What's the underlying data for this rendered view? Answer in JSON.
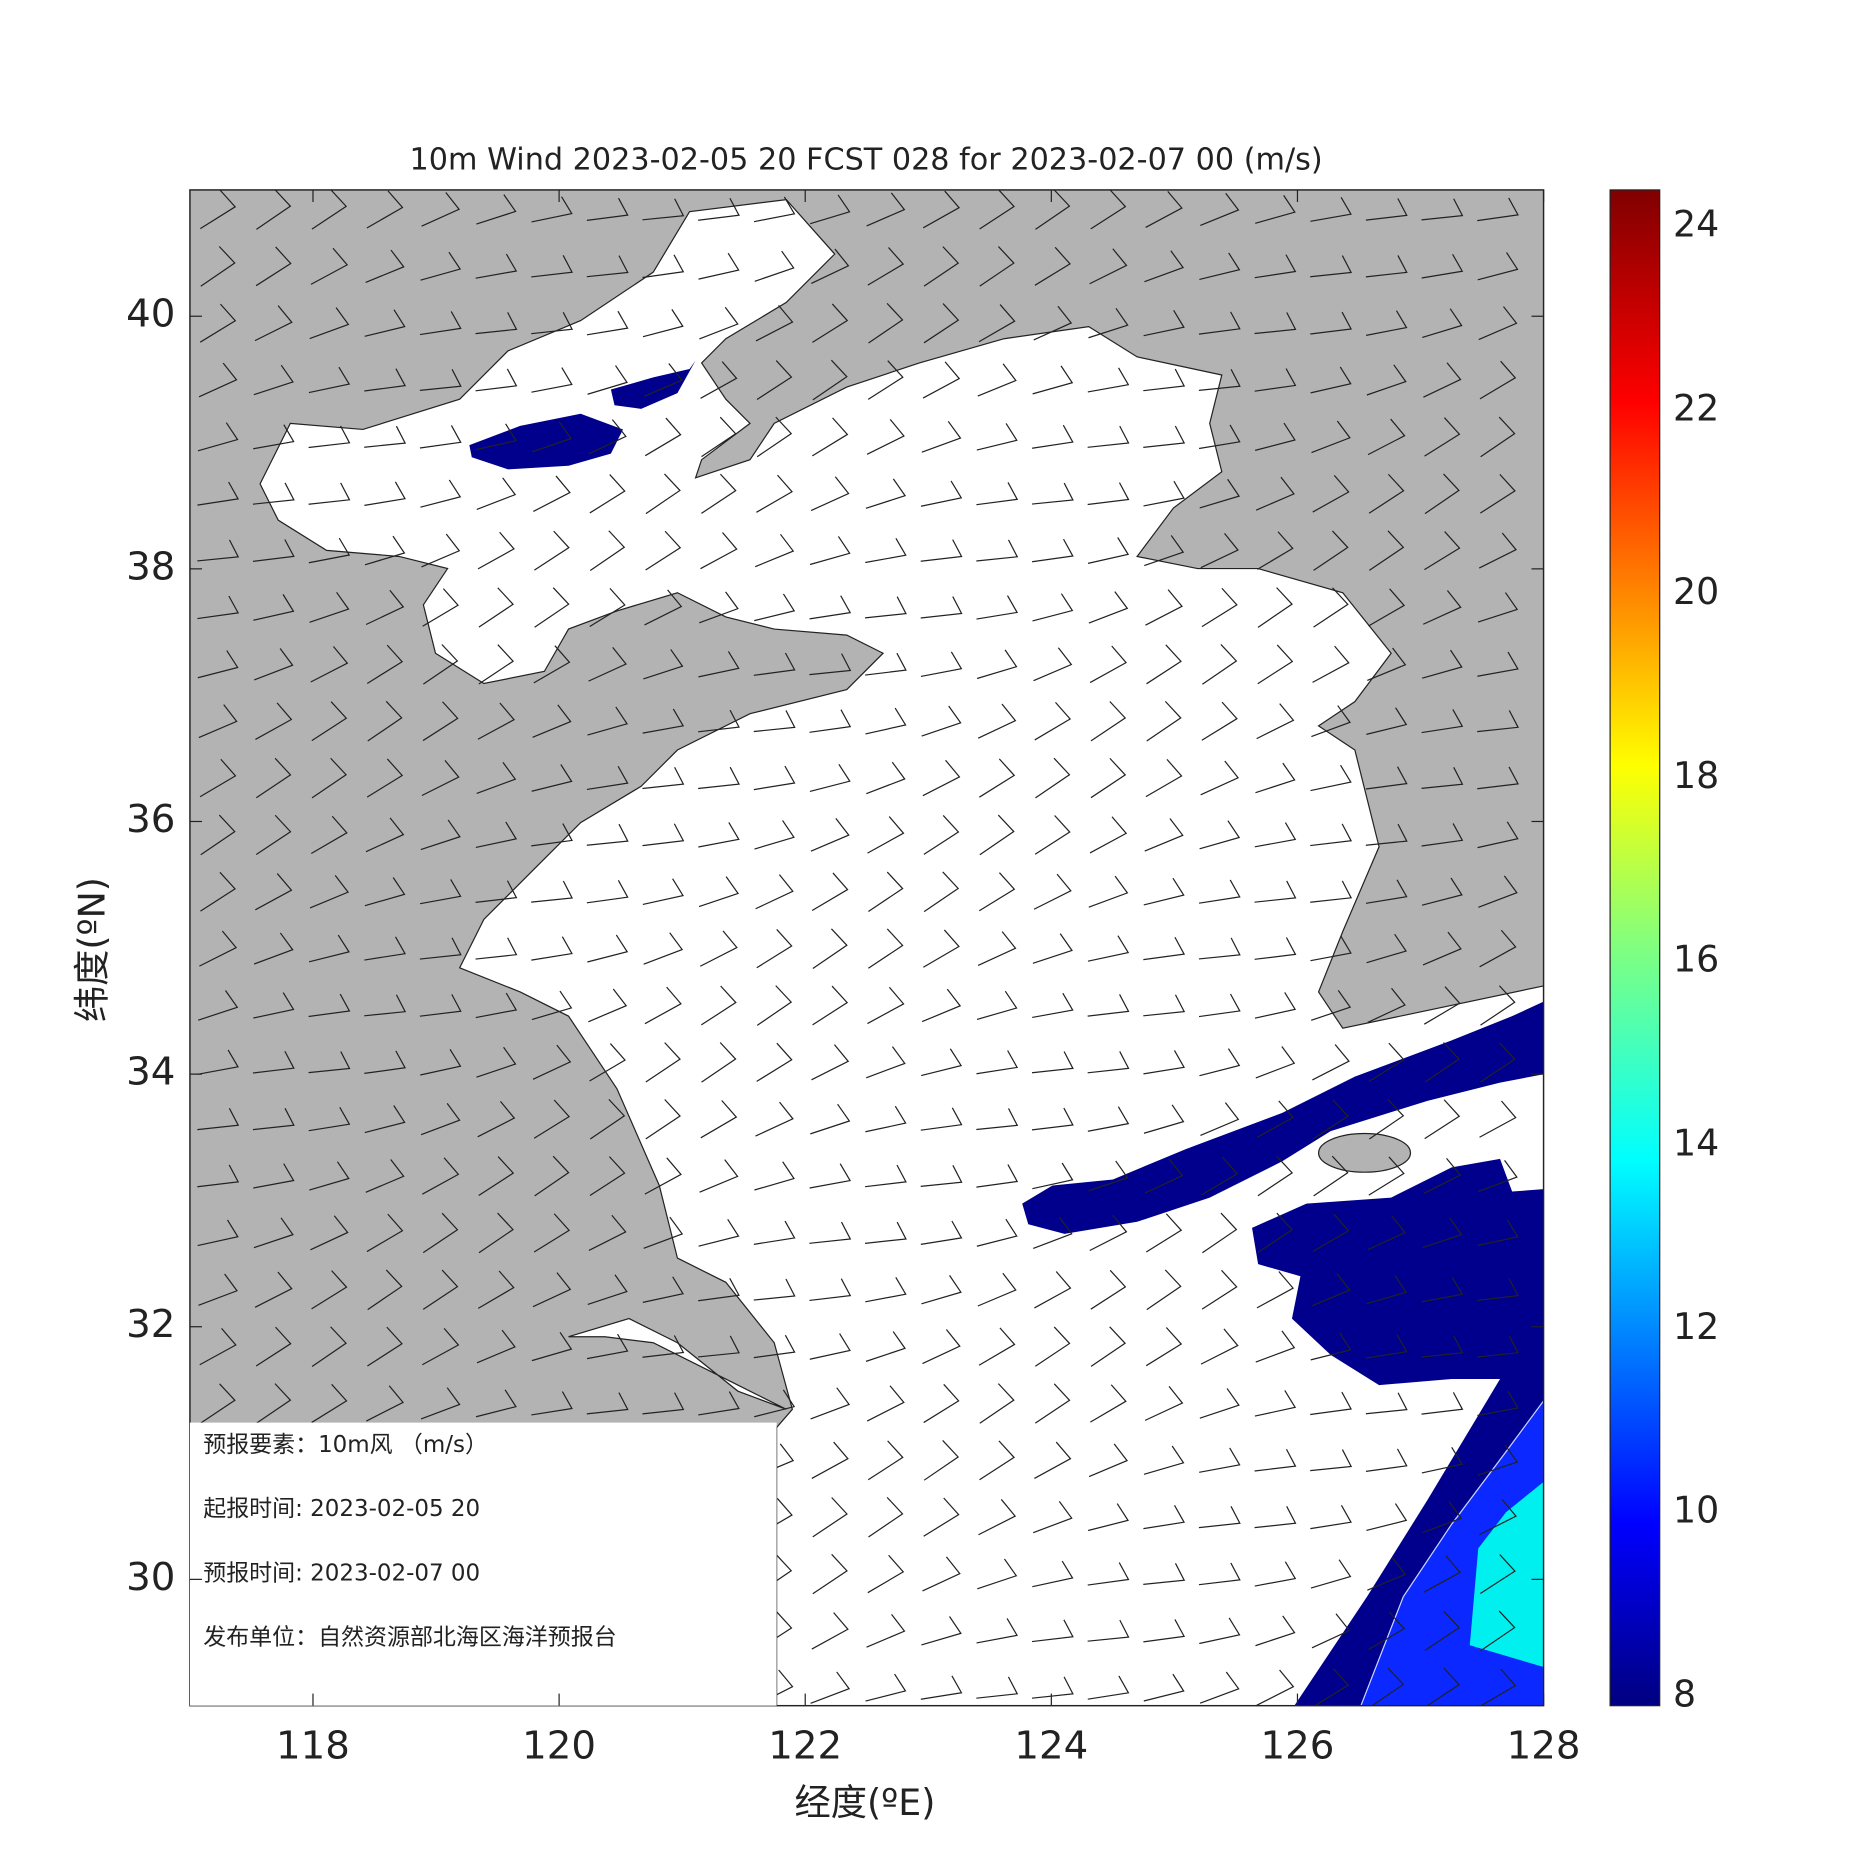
{
  "map_data": {
    "title": "10m Wind 2023-02-05 20 FCST 028 for 2023-02-07 00 (m/s)",
    "xlabel": "经度(ºE)",
    "ylabel": "纬度(ºN)",
    "xlim": [
      117,
      128
    ],
    "ylim": [
      29,
      41
    ],
    "xticks": [
      118,
      120,
      122,
      124,
      126,
      128
    ],
    "yticks": [
      30,
      32,
      34,
      36,
      38,
      40
    ],
    "colorbar": {
      "clim": [
        7.9,
        24.4
      ],
      "ticks": [
        8,
        10,
        12,
        14,
        16,
        18,
        20,
        22,
        24
      ]
    },
    "info": [
      "预报要素：10m风 （m/s）",
      "起报时间: 2023-02-05 20",
      "预报时间: 2023-02-07 00",
      "发布单位：自然资源部北海区海洋预报台"
    ]
  }
}
